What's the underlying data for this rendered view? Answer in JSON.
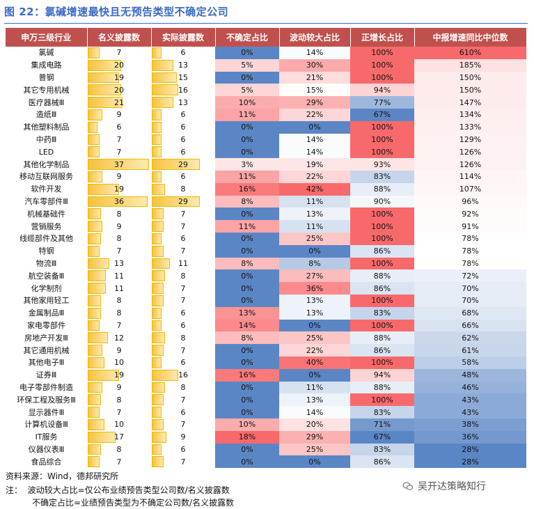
{
  "title": "图 22：氯碱增速最快且无预告类型不确定公司",
  "headers": [
    "申万三级行业",
    "名义披露数",
    "实际披露数",
    "不确定占比",
    "波动较大占比",
    "正增长占比",
    "中报增速同比中位数"
  ],
  "rows": [
    {
      "name": "氯碱",
      "nominal": 7,
      "actual": 6,
      "uncertain": "0%",
      "volatile": "14%",
      "positive": "100%",
      "median": "610%"
    },
    {
      "name": "集成电路",
      "nominal": 20,
      "actual": 13,
      "uncertain": "5%",
      "volatile": "30%",
      "positive": "100%",
      "median": "185%"
    },
    {
      "name": "普钢",
      "nominal": 19,
      "actual": 15,
      "uncertain": "0%",
      "volatile": "21%",
      "positive": "100%",
      "median": "150%"
    },
    {
      "name": "其它专用机械",
      "nominal": 20,
      "actual": 16,
      "uncertain": "5%",
      "volatile": "15%",
      "positive": "94%",
      "median": "150%"
    },
    {
      "name": "医疗器械Ⅲ",
      "nominal": 21,
      "actual": 13,
      "uncertain": "10%",
      "volatile": "29%",
      "positive": "77%",
      "median": "147%"
    },
    {
      "name": "造纸Ⅲ",
      "nominal": 9,
      "actual": 6,
      "uncertain": "11%",
      "volatile": "22%",
      "positive": "67%",
      "median": "134%"
    },
    {
      "name": "其他塑料制品",
      "nominal": 6,
      "actual": 6,
      "uncertain": "0%",
      "volatile": "0%",
      "positive": "100%",
      "median": "133%"
    },
    {
      "name": "中药Ⅲ",
      "nominal": 7,
      "actual": 6,
      "uncertain": "0%",
      "volatile": "14%",
      "positive": "100%",
      "median": "129%"
    },
    {
      "name": "LED",
      "nominal": 7,
      "actual": 6,
      "uncertain": "0%",
      "volatile": "14%",
      "positive": "100%",
      "median": "126%"
    },
    {
      "name": "其他化学制品",
      "nominal": 37,
      "actual": 29,
      "uncertain": "3%",
      "volatile": "19%",
      "positive": "93%",
      "median": "126%"
    },
    {
      "name": "移动互联网服务",
      "nominal": 9,
      "actual": 6,
      "uncertain": "11%",
      "volatile": "22%",
      "positive": "83%",
      "median": "114%"
    },
    {
      "name": "软件开发",
      "nominal": 19,
      "actual": 8,
      "uncertain": "16%",
      "volatile": "42%",
      "positive": "88%",
      "median": "107%"
    },
    {
      "name": "汽车零部件Ⅲ",
      "nominal": 36,
      "actual": 29,
      "uncertain": "8%",
      "volatile": "11%",
      "positive": "90%",
      "median": "96%"
    },
    {
      "name": "机械基础件",
      "nominal": 8,
      "actual": 7,
      "uncertain": "0%",
      "volatile": "13%",
      "positive": "100%",
      "median": "92%"
    },
    {
      "name": "营销服务",
      "nominal": 9,
      "actual": 7,
      "uncertain": "11%",
      "volatile": "11%",
      "positive": "100%",
      "median": "91%"
    },
    {
      "name": "线缆部件及其他",
      "nominal": 8,
      "actual": 6,
      "uncertain": "0%",
      "volatile": "25%",
      "positive": "100%",
      "median": "78%"
    },
    {
      "name": "特钢",
      "nominal": 7,
      "actual": 7,
      "uncertain": "0%",
      "volatile": "0%",
      "positive": "86%",
      "median": "78%"
    },
    {
      "name": "物流Ⅲ",
      "nominal": 13,
      "actual": 11,
      "uncertain": "8%",
      "volatile": "8%",
      "positive": "100%",
      "median": "78%"
    },
    {
      "name": "航空装备Ⅲ",
      "nominal": 11,
      "actual": 8,
      "uncertain": "0%",
      "volatile": "27%",
      "positive": "88%",
      "median": "72%"
    },
    {
      "name": "化学制剂",
      "nominal": 11,
      "actual": 7,
      "uncertain": "0%",
      "volatile": "36%",
      "positive": "86%",
      "median": "70%"
    },
    {
      "name": "其他家用轻工",
      "nominal": 8,
      "actual": 7,
      "uncertain": "0%",
      "volatile": "13%",
      "positive": "100%",
      "median": "70%"
    },
    {
      "name": "金属制品Ⅲ",
      "nominal": 8,
      "actual": 6,
      "uncertain": "13%",
      "volatile": "13%",
      "positive": "83%",
      "median": "68%"
    },
    {
      "name": "家电零部件",
      "nominal": 7,
      "actual": 6,
      "uncertain": "14%",
      "volatile": "0%",
      "positive": "100%",
      "median": "66%"
    },
    {
      "name": "房地产开发Ⅲ",
      "nominal": 12,
      "actual": 8,
      "uncertain": "8%",
      "volatile": "25%",
      "positive": "88%",
      "median": "62%"
    },
    {
      "name": "其它通用机械",
      "nominal": 9,
      "actual": 7,
      "uncertain": "0%",
      "volatile": "22%",
      "positive": "86%",
      "median": "61%"
    },
    {
      "name": "其他电子Ⅲ",
      "nominal": 10,
      "actual": 6,
      "uncertain": "0%",
      "volatile": "40%",
      "positive": "100%",
      "median": "58%"
    },
    {
      "name": "证券Ⅲ",
      "nominal": 19,
      "actual": 16,
      "uncertain": "16%",
      "volatile": "0%",
      "positive": "94%",
      "median": "48%"
    },
    {
      "name": "电子零部件制造",
      "nominal": 9,
      "actual": 8,
      "uncertain": "0%",
      "volatile": "11%",
      "positive": "88%",
      "median": "46%"
    },
    {
      "name": "环保工程及服务Ⅲ",
      "nominal": 8,
      "actual": 7,
      "uncertain": "0%",
      "volatile": "13%",
      "positive": "100%",
      "median": "43%"
    },
    {
      "name": "显示器件Ⅲ",
      "nominal": 7,
      "actual": 6,
      "uncertain": "0%",
      "volatile": "14%",
      "positive": "83%",
      "median": "43%"
    },
    {
      "name": "计算机设备Ⅲ",
      "nominal": 10,
      "actual": 7,
      "uncertain": "10%",
      "volatile": "20%",
      "positive": "71%",
      "median": "38%"
    },
    {
      "name": "IT服务",
      "nominal": 17,
      "actual": 9,
      "uncertain": "18%",
      "volatile": "29%",
      "positive": "67%",
      "median": "36%"
    },
    {
      "name": "仪器仪表Ⅲ",
      "nominal": 8,
      "actual": 6,
      "uncertain": "0%",
      "volatile": "25%",
      "positive": "83%",
      "median": "28%"
    },
    {
      "name": "食品综合",
      "nominal": 7,
      "actual": 7,
      "uncertain": "0%",
      "volatile": "0%",
      "positive": "86%",
      "median": "28%"
    }
  ],
  "footer": {
    "source": "资料来源：Wind，德邦研究所",
    "note1": "注：  波动较大占比=仅公布业绩预告类型公司数/名义披露数",
    "note2": "不确定占比=业绩预告类型为不确定公司数/名义披露数"
  },
  "watermark": {
    "text": "吴开达策略知行",
    "icon": "wechat-icon"
  },
  "colors": {
    "header": "#c0504d",
    "title": "#3a69c8",
    "bar": "#f7c33c",
    "low": "#5b86c5",
    "mid": "#ffffff",
    "high": "#f8696b"
  }
}
